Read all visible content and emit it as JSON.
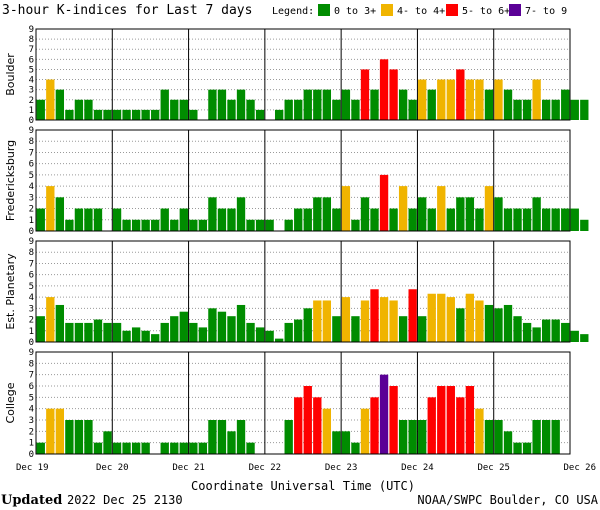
{
  "chart_data": {
    "type": "bar",
    "title": "3-hour K-indices for Last 7 days",
    "legend": {
      "label": "Legend:",
      "entries": [
        {
          "label": "0 to 3+",
          "color": "#008c00"
        },
        {
          "label": "4- to 4+",
          "color": "#f0b400"
        },
        {
          "label": "5- to 6+",
          "color": "#ff0000"
        },
        {
          "label": "7- to 9",
          "color": "#5a0096"
        }
      ]
    },
    "xlabel": "Coordinate Universal Time (UTC)",
    "x_tick_labels": [
      "Dec 19",
      "Dec 20",
      "Dec 21",
      "Dec 22",
      "Dec 23",
      "Dec 24",
      "Dec 25",
      "Dec 26"
    ],
    "y_tick_labels": [
      "0",
      "1",
      "2",
      "3",
      "4",
      "5",
      "6",
      "7",
      "8",
      "9"
    ],
    "ylim": [
      0,
      9
    ],
    "grid": true,
    "panels": [
      {
        "name": "Boulder",
        "values": [
          2,
          4,
          3,
          1,
          2,
          2,
          1,
          1,
          1,
          1,
          1,
          1,
          1,
          3,
          2,
          2,
          1,
          0,
          3,
          3,
          2,
          3,
          2,
          1,
          0,
          1,
          2,
          2,
          3,
          3,
          3,
          2,
          3,
          2,
          5,
          3,
          6,
          5,
          3,
          2,
          4,
          3,
          4,
          4,
          5,
          4,
          4,
          3,
          4,
          3,
          2,
          2,
          4,
          2,
          2,
          3,
          2,
          2,
          0
        ]
      },
      {
        "name": "Fredericksburg",
        "values": [
          2,
          4,
          3,
          1,
          2,
          2,
          2,
          0,
          2,
          1,
          1,
          1,
          1,
          2,
          1,
          2,
          1,
          1,
          3,
          2,
          2,
          3,
          1,
          1,
          1,
          0,
          1,
          2,
          2,
          3,
          3,
          2,
          4,
          1,
          3,
          2,
          5,
          2,
          4,
          2,
          3,
          2,
          4,
          2,
          3,
          3,
          2,
          4,
          3,
          2,
          2,
          2,
          3,
          2,
          2,
          2,
          2,
          1,
          0
        ]
      },
      {
        "name": "Est. Planetary",
        "values": [
          2.3,
          4,
          3.3,
          1.7,
          1.7,
          1.7,
          2,
          1.7,
          1.7,
          1,
          1.3,
          1,
          0.7,
          1.7,
          2.3,
          2.7,
          1.7,
          1.3,
          3,
          2.7,
          2.3,
          3.3,
          1.7,
          1.3,
          1,
          0.3,
          1.7,
          2,
          3,
          3.7,
          3.7,
          2.3,
          4,
          2.3,
          3.7,
          4.7,
          4,
          3.7,
          2.3,
          4.7,
          2.3,
          4.3,
          4.3,
          4,
          3,
          4.3,
          3.7,
          3.3,
          3,
          3.3,
          2.3,
          1.7,
          1.3,
          2,
          2,
          1.7,
          1,
          0.7
        ]
      },
      {
        "name": "College",
        "values": [
          1,
          4,
          4,
          3,
          3,
          3,
          1,
          2,
          1,
          1,
          1,
          1,
          0,
          1,
          1,
          1,
          1,
          1,
          3,
          3,
          2,
          3,
          1,
          0,
          0,
          0,
          3,
          5,
          6,
          5,
          4,
          2,
          2,
          1,
          4,
          5,
          7,
          6,
          3,
          3,
          3,
          5,
          6,
          6,
          5,
          6,
          4,
          3,
          3,
          2,
          1,
          1,
          3,
          3,
          3,
          0
        ]
      }
    ]
  },
  "footer": {
    "updated_label": "Updated",
    "updated_value": "2022 Dec 25 2130",
    "credit": "NOAA/SWPC Boulder, CO USA"
  }
}
